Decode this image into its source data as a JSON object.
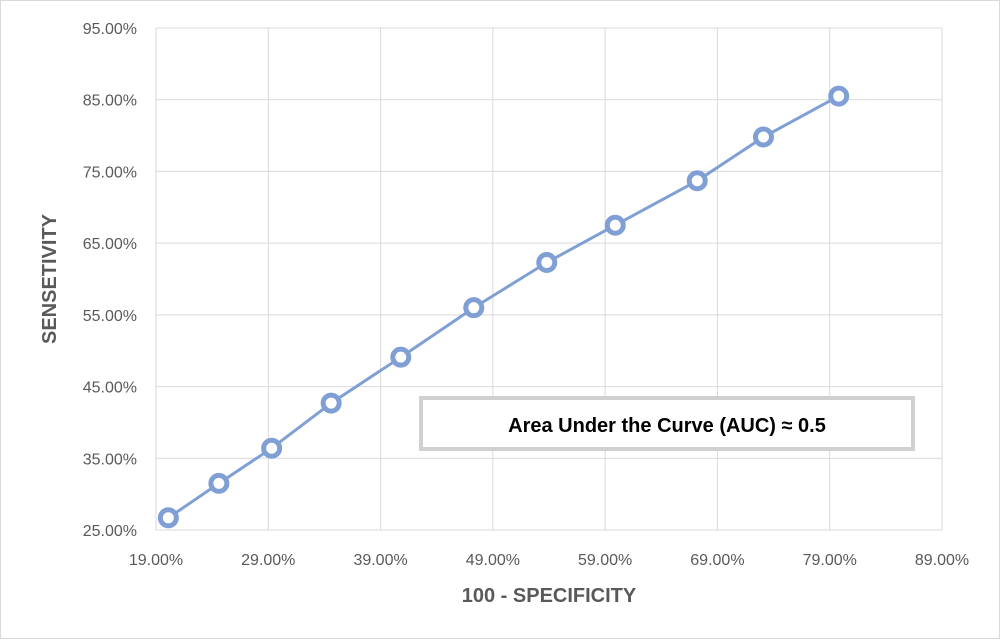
{
  "chart_data": {
    "type": "line",
    "title": "",
    "xlabel": "100 - SPECIFICITY",
    "ylabel": "SENSETIVITY",
    "xlim": [
      19,
      89
    ],
    "ylim": [
      25,
      95
    ],
    "x_ticks": [
      "19.00%",
      "29.00%",
      "39.00%",
      "49.00%",
      "59.00%",
      "69.00%",
      "79.00%",
      "89.00%"
    ],
    "y_ticks": [
      "25.00%",
      "35.00%",
      "45.00%",
      "55.00%",
      "65.00%",
      "75.00%",
      "85.00%",
      "95.00%"
    ],
    "grid": true,
    "legend": "none",
    "series": [
      {
        "color": "#7f9fd5",
        "x": [
          20.1,
          24.6,
          29.3,
          34.6,
          40.8,
          47.3,
          53.8,
          59.9,
          67.2,
          73.1,
          79.8
        ],
        "y": [
          26.7,
          31.5,
          36.4,
          42.7,
          49.1,
          56.0,
          62.3,
          67.5,
          73.7,
          79.8,
          85.5
        ]
      }
    ],
    "annotation": "Area Under the Curve (AUC) ≈ 0.5"
  }
}
